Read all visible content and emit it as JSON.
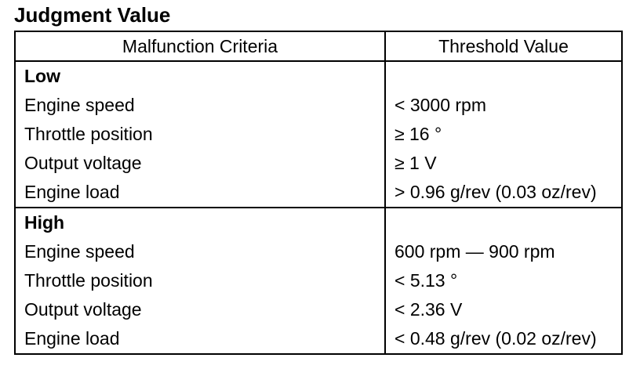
{
  "title": "Judgment Value",
  "table": {
    "headers": {
      "criteria": "Malfunction Criteria",
      "threshold": "Threshold Value"
    },
    "groups": [
      {
        "label": "Low",
        "rows": [
          {
            "criteria": "Engine speed",
            "threshold": "< 3000 rpm"
          },
          {
            "criteria": "Throttle position",
            "threshold": "≥ 16 °"
          },
          {
            "criteria": "Output voltage",
            "threshold": "≥ 1 V"
          },
          {
            "criteria": "Engine load",
            "threshold": "> 0.96 g/rev (0.03 oz/rev)"
          }
        ]
      },
      {
        "label": "High",
        "rows": [
          {
            "criteria": "Engine speed",
            "threshold": "600 rpm — 900 rpm"
          },
          {
            "criteria": "Throttle position",
            "threshold": "< 5.13 °"
          },
          {
            "criteria": "Output voltage",
            "threshold": "< 2.36 V"
          },
          {
            "criteria": "Engine load",
            "threshold": "< 0.48 g/rev (0.02 oz/rev)"
          }
        ]
      }
    ]
  }
}
